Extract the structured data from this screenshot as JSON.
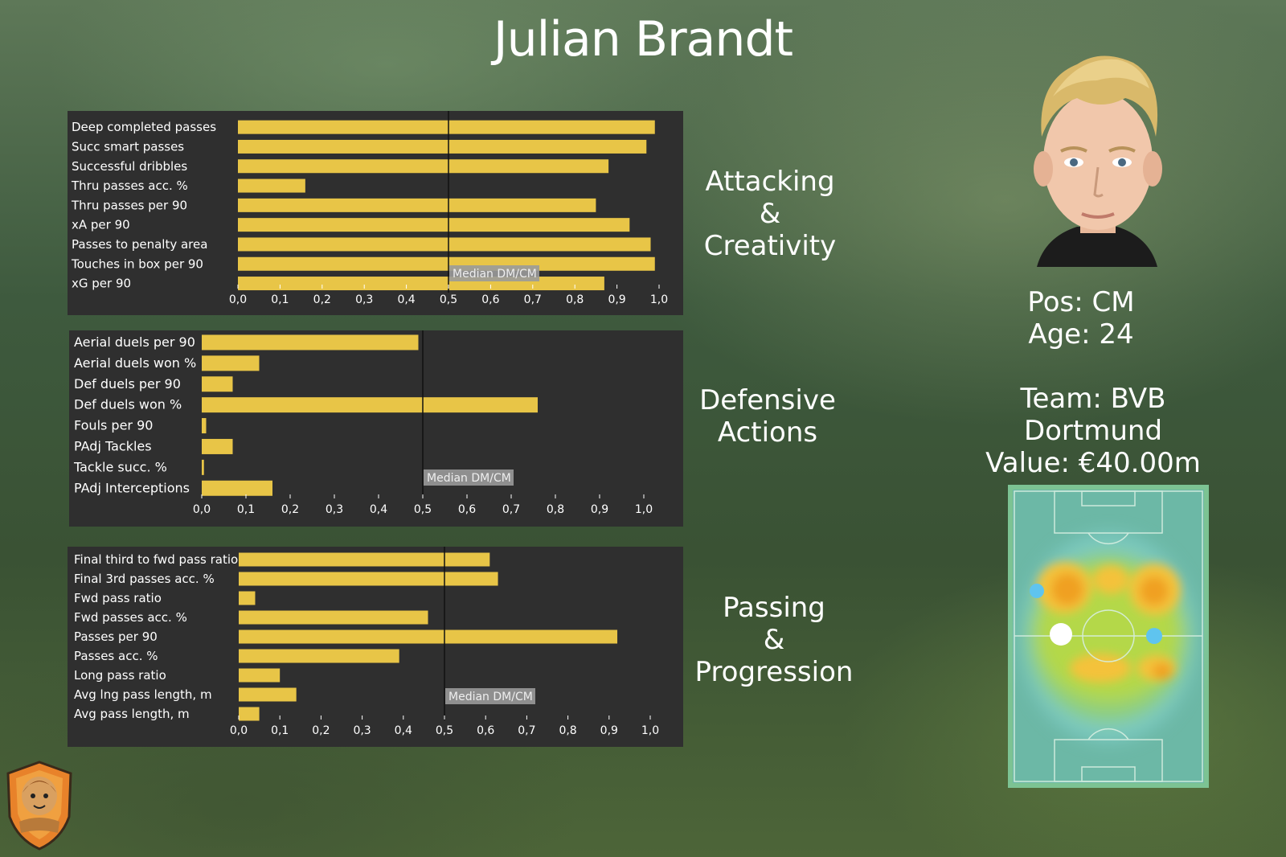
{
  "player": {
    "name": "Julian Brandt",
    "position": "Pos: CM",
    "age": "Age: 24",
    "team": "Team: BVB Dortmund",
    "value": "Value: €40.00m"
  },
  "categories": {
    "attacking": [
      "Attacking",
      "&",
      "Creativity"
    ],
    "defensive": [
      "Defensive",
      "Actions"
    ],
    "passing": [
      "Passing",
      "&",
      "Progression"
    ]
  },
  "chart_data": [
    {
      "type": "bar",
      "orientation": "horizontal",
      "categories": [
        "Deep completed passes",
        "Succ smart passes",
        "Successful dribbles",
        "Thru passes acc. %",
        "Thru passes per 90",
        "xA per 90",
        "Passes to penalty area",
        "Touches in box per 90",
        "xG per 90"
      ],
      "values": [
        0.99,
        0.97,
        0.88,
        0.16,
        0.85,
        0.93,
        0.98,
        0.99,
        0.87
      ],
      "xlim": [
        0,
        1
      ],
      "ticks": [
        "0,0",
        "0,1",
        "0,2",
        "0,3",
        "0,4",
        "0,5",
        "0,6",
        "0,7",
        "0,8",
        "0,9",
        "1,0"
      ],
      "reference_line": {
        "value": 0.5,
        "label": "Median DM/CM"
      },
      "bar_color": "#e8c547"
    },
    {
      "type": "bar",
      "orientation": "horizontal",
      "categories": [
        "Aerial duels per 90",
        "Aerial duels won %",
        "Def duels per 90",
        "Def duels won %",
        "Fouls per 90",
        "PAdj Tackles",
        "Tackle succ. %",
        "PAdj Interceptions"
      ],
      "values": [
        0.49,
        0.13,
        0.07,
        0.76,
        0.01,
        0.07,
        0.005,
        0.16
      ],
      "xlim": [
        0,
        1
      ],
      "ticks": [
        "0,0",
        "0,1",
        "0,2",
        "0,3",
        "0,4",
        "0,5",
        "0,6",
        "0,7",
        "0,8",
        "0,9",
        "1,0"
      ],
      "reference_line": {
        "value": 0.5,
        "label": "Median DM/CM"
      },
      "bar_color": "#e8c547"
    },
    {
      "type": "bar",
      "orientation": "horizontal",
      "categories": [
        "Final third to fwd pass ratio",
        "Final 3rd passes acc. %",
        "Fwd pass ratio",
        "Fwd passes acc. %",
        "Passes per 90",
        "Passes acc. %",
        "Long pass ratio",
        "Avg lng pass length, m",
        "Avg pass length, m"
      ],
      "values": [
        0.61,
        0.63,
        0.04,
        0.46,
        0.92,
        0.39,
        0.1,
        0.14,
        0.05
      ],
      "xlim": [
        0,
        1
      ],
      "ticks": [
        "0,0",
        "0,1",
        "0,2",
        "0,3",
        "0,4",
        "0,5",
        "0,6",
        "0,7",
        "0,8",
        "0,9",
        "1,0"
      ],
      "reference_line": {
        "value": 0.5,
        "label": "Median DM/CM"
      },
      "bar_color": "#e8c547"
    }
  ]
}
